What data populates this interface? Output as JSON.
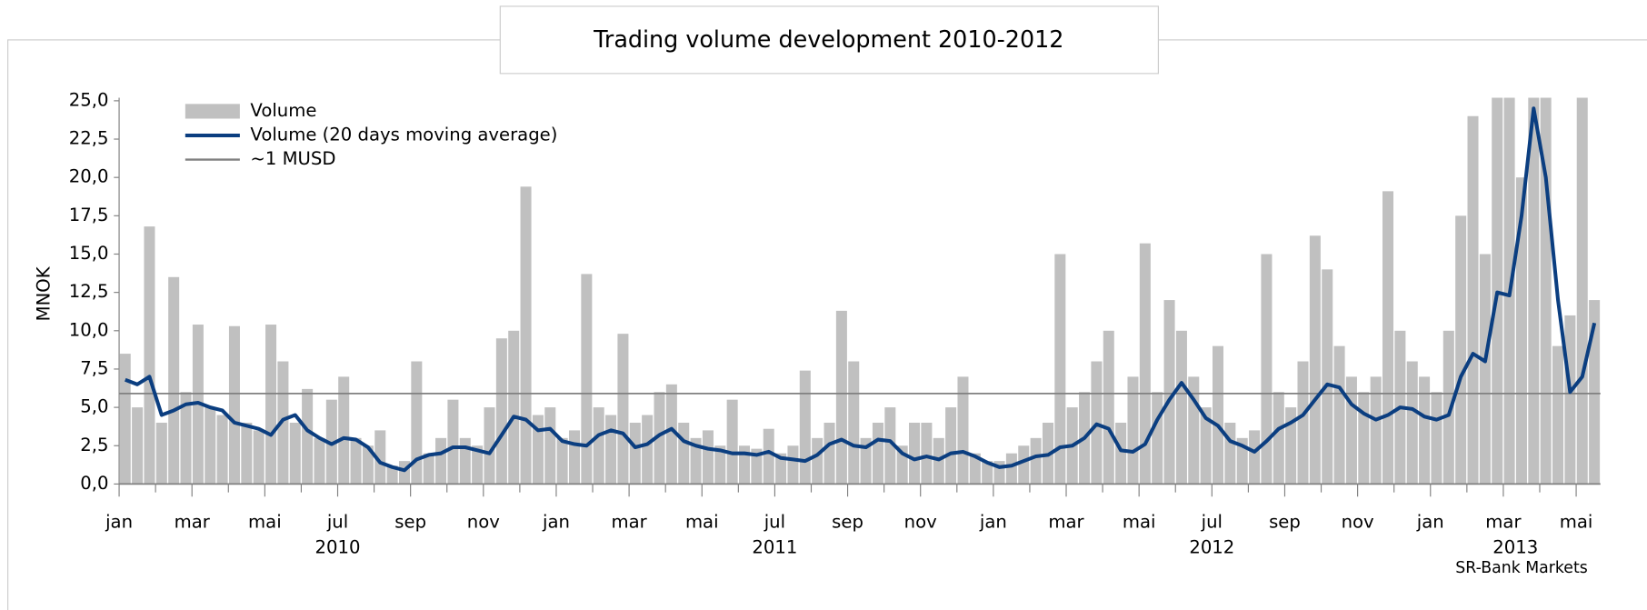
{
  "chart_data": {
    "type": "bar_line",
    "title": "Trading volume development 2010-2012",
    "y_label": "MNOK",
    "source": "SR-Bank Markets",
    "categories": [
      "jan",
      null,
      null,
      null,
      null,
      null,
      "mar",
      null,
      null,
      null,
      null,
      null,
      "mai",
      null,
      null,
      null,
      null,
      null,
      "jul",
      null,
      null,
      null,
      null,
      null,
      "sep",
      null,
      null,
      null,
      null,
      null,
      "nov",
      null,
      null,
      null,
      null,
      null,
      "jan",
      null,
      null,
      null,
      null,
      null,
      "mar",
      null,
      null,
      null,
      null,
      null,
      "mai",
      null,
      null,
      null,
      null,
      null,
      "jul",
      null,
      null,
      null,
      null,
      null,
      "sep",
      null,
      null,
      null,
      null,
      null,
      "nov",
      null,
      null,
      null,
      null,
      null,
      "jan",
      null,
      null,
      null,
      null,
      null,
      "mar",
      null,
      null,
      null,
      null,
      null,
      "mai",
      null,
      null,
      null,
      null,
      null,
      "jul",
      null,
      null,
      null,
      null,
      null,
      "sep",
      null,
      null,
      null,
      null,
      null,
      "nov",
      null,
      null,
      null,
      null,
      null,
      "jan",
      null,
      null,
      null,
      null,
      null,
      "mar",
      null,
      null,
      null,
      null,
      null,
      "mai",
      null
    ],
    "years": [
      "2010",
      "2011",
      "2012",
      "2013"
    ],
    "series": [
      {
        "name": "Volume",
        "kind": "bar",
        "color": "#c0c0c0",
        "values": [
          8.5,
          5,
          16.8,
          4,
          13.5,
          6,
          10.4,
          5,
          4.5,
          10.3,
          4,
          3.5,
          10.4,
          8,
          4,
          6.2,
          3,
          5.5,
          7.0,
          3,
          2.5,
          3.5,
          1.2,
          1.5,
          8,
          2,
          3,
          5.5,
          3,
          2.5,
          5,
          9.5,
          10,
          19.4,
          4.5,
          5,
          3,
          3.5,
          13.7,
          5,
          4.5,
          9.8,
          4,
          4.5,
          6,
          6.5,
          4,
          3,
          3.5,
          2.5,
          5.5,
          2.5,
          2.3,
          3.6,
          2,
          2.5,
          7.4,
          3,
          4,
          11.3,
          8,
          3,
          4,
          5,
          2.5,
          4,
          4,
          3,
          5,
          7,
          2,
          1.5,
          1.5,
          2,
          2.5,
          3,
          4,
          15,
          5,
          6,
          8,
          10,
          4,
          7,
          15.7,
          6,
          12,
          10,
          7,
          5,
          9,
          4,
          3,
          3.5,
          15,
          6,
          5,
          8,
          16.2,
          14,
          9,
          7,
          6,
          7,
          19.1,
          10,
          8,
          7,
          6,
          10,
          17.5,
          24,
          15,
          25.2,
          25.2,
          20,
          25.2,
          25.2,
          9,
          11,
          25.2,
          12
        ]
      },
      {
        "name": "Volume (20 days moving average)",
        "kind": "line",
        "color": "#0b3e80",
        "values": [
          6.8,
          6.5,
          7.0,
          4.5,
          4.8,
          5.2,
          5.3,
          5.0,
          4.8,
          4.0,
          3.8,
          3.6,
          3.2,
          4.2,
          4.5,
          3.5,
          3.0,
          2.6,
          3.0,
          2.9,
          2.4,
          1.4,
          1.1,
          0.9,
          1.6,
          1.9,
          2.0,
          2.4,
          2.4,
          2.2,
          2.0,
          3.2,
          4.4,
          4.2,
          3.5,
          3.6,
          2.8,
          2.6,
          2.5,
          3.2,
          3.5,
          3.3,
          2.4,
          2.6,
          3.2,
          3.6,
          2.8,
          2.5,
          2.3,
          2.2,
          2.0,
          2.0,
          1.9,
          2.1,
          1.7,
          1.6,
          1.5,
          1.9,
          2.6,
          2.9,
          2.5,
          2.4,
          2.9,
          2.8,
          2.0,
          1.6,
          1.8,
          1.6,
          2.0,
          2.1,
          1.8,
          1.4,
          1.1,
          1.2,
          1.5,
          1.8,
          1.9,
          2.4,
          2.5,
          3.0,
          3.9,
          3.6,
          2.2,
          2.1,
          2.6,
          4.2,
          5.5,
          6.6,
          5.5,
          4.3,
          3.8,
          2.8,
          2.5,
          2.1,
          2.8,
          3.6,
          4.0,
          4.5,
          5.5,
          6.5,
          6.3,
          5.2,
          4.6,
          4.2,
          4.5,
          5.0,
          4.9,
          4.4,
          4.2,
          4.5,
          7.0,
          8.5,
          8.0,
          12.5,
          12.3,
          17.5,
          24.5,
          20.0,
          12.0,
          6.0,
          7.0,
          10.5
        ]
      }
    ],
    "reference_line": {
      "name": "~1 MUSD",
      "value": 5.9,
      "color": "#808080"
    },
    "ylim": [
      0,
      25.2
    ],
    "yticks": [
      {
        "value": 0,
        "label": "0,0"
      },
      {
        "value": 2.5,
        "label": "2,5"
      },
      {
        "value": 5,
        "label": "5,0"
      },
      {
        "value": 7.5,
        "label": "7,5"
      },
      {
        "value": 10,
        "label": "10,0"
      },
      {
        "value": 12.5,
        "label": "12,5"
      },
      {
        "value": 15,
        "label": "15,0"
      },
      {
        "value": 17.5,
        "label": "17,5"
      },
      {
        "value": 20,
        "label": "20,0"
      },
      {
        "value": 22.5,
        "label": "22,5"
      },
      {
        "value": 25,
        "label": "25,0"
      }
    ],
    "legend": "top-left"
  }
}
